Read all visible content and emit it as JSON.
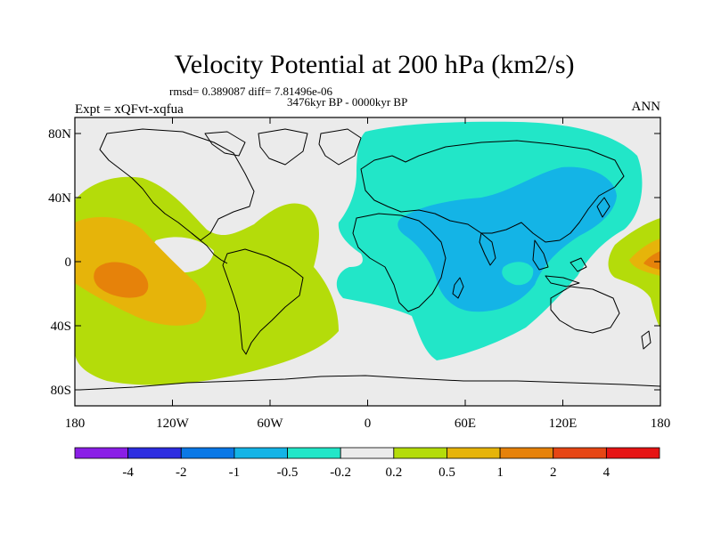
{
  "title": "Velocity Potential at 200 hPa (km2/s)",
  "stats_line": "rmsd= 0.389087 diff= 7.81496e-06",
  "period": "3476kyr BP - 0000kyr BP",
  "experiment": "Expt = xQFvt-xqfua",
  "season": "ANN",
  "lat_ticks": [
    "80N",
    "40N",
    "0",
    "40S",
    "80S"
  ],
  "lon_ticks": [
    "180",
    "120W",
    "60W",
    "0",
    "60E",
    "120E",
    "180"
  ],
  "colorbar": {
    "colors": [
      "#8a1ee6",
      "#2d2de0",
      "#0a78e6",
      "#14b4e6",
      "#22e6c8",
      "#ebebeb",
      "#b4dc0a",
      "#e6b40a",
      "#e6820a",
      "#e64614",
      "#e61414"
    ],
    "labels": [
      "-4",
      "-2",
      "-1",
      "-0.5",
      "-0.2",
      "0.2",
      "0.5",
      "1",
      "2",
      "4"
    ]
  },
  "map_colors": {
    "background": "#ebebeb",
    "positive_low": "#b4dc0a",
    "positive_mid": "#e6b40a",
    "positive_high": "#e6820a",
    "negative_low": "#22e6c8",
    "negative_mid": "#14b4e6"
  }
}
